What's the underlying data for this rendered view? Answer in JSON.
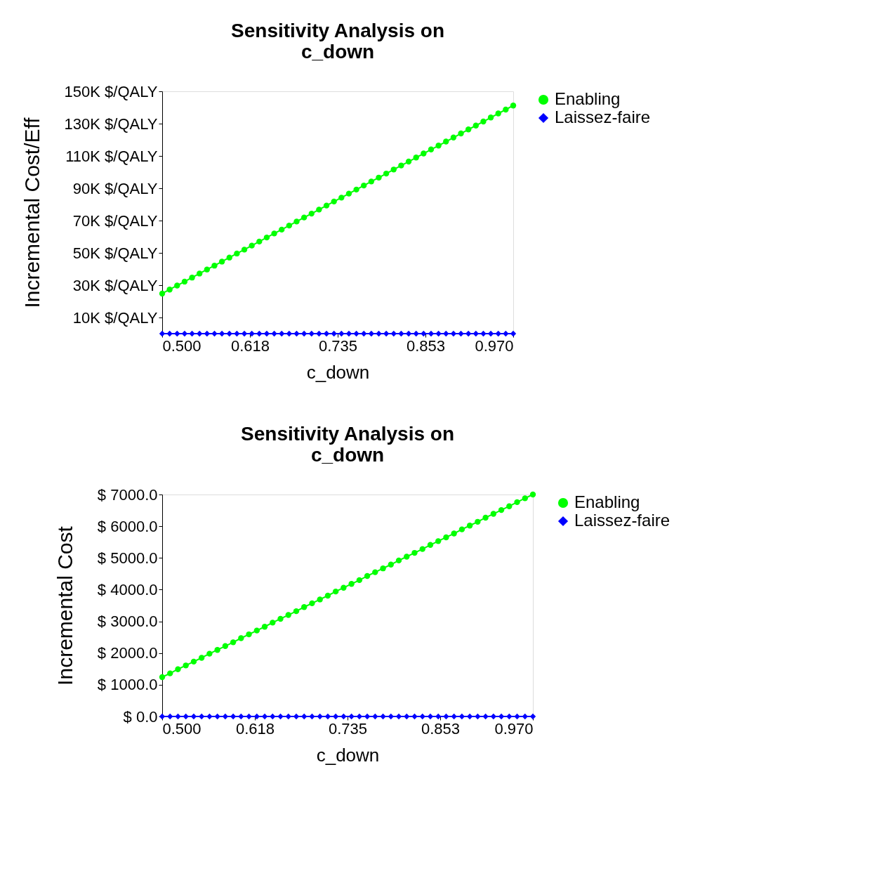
{
  "chart_data": [
    {
      "type": "line",
      "title": "Sensitivity Analysis on\nc_down",
      "xlabel": "c_down",
      "ylabel": "Incremental Cost/Eff",
      "x": [
        0.5,
        0.51,
        0.52,
        0.53,
        0.54,
        0.55,
        0.56,
        0.57,
        0.58,
        0.59,
        0.6,
        0.61,
        0.62,
        0.63,
        0.64,
        0.65,
        0.66,
        0.67,
        0.68,
        0.69,
        0.7,
        0.71,
        0.72,
        0.73,
        0.74,
        0.75,
        0.76,
        0.77,
        0.78,
        0.79,
        0.8,
        0.81,
        0.82,
        0.83,
        0.84,
        0.85,
        0.86,
        0.87,
        0.88,
        0.89,
        0.9,
        0.91,
        0.92,
        0.93,
        0.94,
        0.95,
        0.96,
        0.97
      ],
      "series": [
        {
          "name": "Enabling",
          "color": "#00ff00",
          "marker": "circle",
          "values": [
            24800,
            27300,
            29800,
            32200,
            34700,
            37200,
            39700,
            42100,
            44600,
            47100,
            49600,
            52000,
            54500,
            57000,
            59500,
            62000,
            64400,
            66900,
            69400,
            71900,
            74300,
            76800,
            79300,
            81800,
            84200,
            86700,
            89200,
            91700,
            94200,
            96600,
            99100,
            101600,
            104100,
            106500,
            109000,
            111500,
            114000,
            116400,
            118900,
            121400,
            123900,
            126400,
            128800,
            131300,
            133800,
            136300,
            138700,
            141200
          ]
        },
        {
          "name": "Laissez-faire",
          "color": "#0000ff",
          "marker": "diamond",
          "values": [
            0,
            0,
            0,
            0,
            0,
            0,
            0,
            0,
            0,
            0,
            0,
            0,
            0,
            0,
            0,
            0,
            0,
            0,
            0,
            0,
            0,
            0,
            0,
            0,
            0,
            0,
            0,
            0,
            0,
            0,
            0,
            0,
            0,
            0,
            0,
            0,
            0,
            0,
            0,
            0,
            0,
            0,
            0,
            0,
            0,
            0,
            0,
            0
          ]
        }
      ],
      "xlim": [
        0.5,
        0.97
      ],
      "xticks": [
        {
          "value": 0.5,
          "label": "0.500"
        },
        {
          "value": 0.6175,
          "label": "0.618"
        },
        {
          "value": 0.735,
          "label": "0.735"
        },
        {
          "value": 0.8525,
          "label": "0.853"
        },
        {
          "value": 0.97,
          "label": "0.970"
        }
      ],
      "ylim": [
        0,
        150000
      ],
      "yticks": [
        {
          "value": 10000,
          "label": "10K $/QALY"
        },
        {
          "value": 30000,
          "label": "30K $/QALY"
        },
        {
          "value": 50000,
          "label": "50K $/QALY"
        },
        {
          "value": 70000,
          "label": "70K $/QALY"
        },
        {
          "value": 90000,
          "label": "90K $/QALY"
        },
        {
          "value": 110000,
          "label": "110K $/QALY"
        },
        {
          "value": 130000,
          "label": "130K $/QALY"
        },
        {
          "value": 150000,
          "label": "150K $/QALY"
        }
      ],
      "grid": false,
      "legend": "top right",
      "line_style": "solid"
    },
    {
      "type": "line",
      "title": "Sensitivity Analysis on\nc_down",
      "xlabel": "c_down",
      "ylabel": "Incremental Cost",
      "x": [
        0.5,
        0.51,
        0.52,
        0.53,
        0.54,
        0.55,
        0.56,
        0.57,
        0.58,
        0.59,
        0.6,
        0.61,
        0.62,
        0.63,
        0.64,
        0.65,
        0.66,
        0.67,
        0.68,
        0.69,
        0.7,
        0.71,
        0.72,
        0.73,
        0.74,
        0.75,
        0.76,
        0.77,
        0.78,
        0.79,
        0.8,
        0.81,
        0.82,
        0.83,
        0.84,
        0.85,
        0.86,
        0.87,
        0.88,
        0.89,
        0.9,
        0.91,
        0.92,
        0.93,
        0.94,
        0.95,
        0.96,
        0.97
      ],
      "series": [
        {
          "name": "Enabling",
          "color": "#00ff00",
          "marker": "circle",
          "values": [
            1240,
            1360,
            1490,
            1610,
            1730,
            1850,
            1980,
            2100,
            2220,
            2340,
            2470,
            2590,
            2710,
            2830,
            2960,
            3080,
            3200,
            3320,
            3450,
            3570,
            3690,
            3810,
            3940,
            4060,
            4180,
            4300,
            4430,
            4550,
            4670,
            4790,
            4920,
            5040,
            5160,
            5280,
            5410,
            5530,
            5650,
            5770,
            5900,
            6020,
            6140,
            6270,
            6390,
            6510,
            6630,
            6760,
            6880,
            7000
          ]
        },
        {
          "name": "Laissez-faire",
          "color": "#0000ff",
          "marker": "diamond",
          "values": [
            0,
            0,
            0,
            0,
            0,
            0,
            0,
            0,
            0,
            0,
            0,
            0,
            0,
            0,
            0,
            0,
            0,
            0,
            0,
            0,
            0,
            0,
            0,
            0,
            0,
            0,
            0,
            0,
            0,
            0,
            0,
            0,
            0,
            0,
            0,
            0,
            0,
            0,
            0,
            0,
            0,
            0,
            0,
            0,
            0,
            0,
            0,
            0
          ]
        }
      ],
      "xlim": [
        0.5,
        0.97
      ],
      "xticks": [
        {
          "value": 0.5,
          "label": "0.500"
        },
        {
          "value": 0.6175,
          "label": "0.618"
        },
        {
          "value": 0.735,
          "label": "0.735"
        },
        {
          "value": 0.8525,
          "label": "0.853"
        },
        {
          "value": 0.97,
          "label": "0.970"
        }
      ],
      "ylim": [
        0,
        7000
      ],
      "yticks": [
        {
          "value": 0,
          "label": "$ 0.0"
        },
        {
          "value": 1000,
          "label": "$ 1000.0"
        },
        {
          "value": 2000,
          "label": "$ 2000.0"
        },
        {
          "value": 3000,
          "label": "$ 3000.0"
        },
        {
          "value": 4000,
          "label": "$ 4000.0"
        },
        {
          "value": 5000,
          "label": "$ 5000.0"
        },
        {
          "value": 6000,
          "label": "$ 6000.0"
        },
        {
          "value": 7000,
          "label": "$ 7000.0"
        }
      ],
      "grid": false,
      "legend": "top right",
      "line_style": "solid"
    }
  ]
}
